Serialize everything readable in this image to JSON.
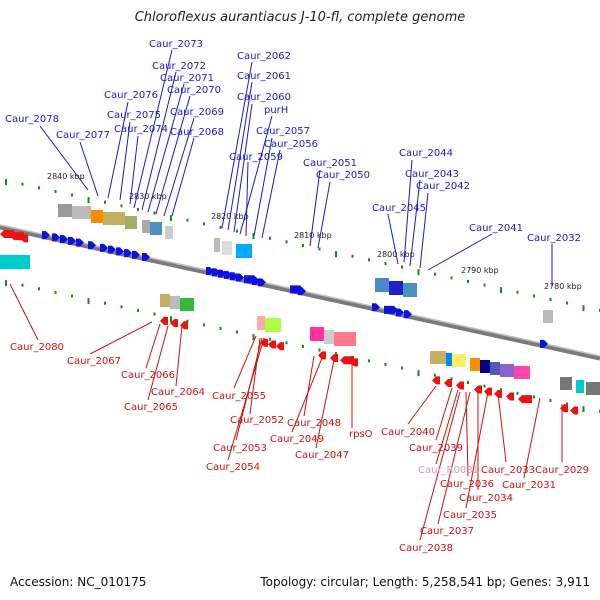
{
  "title": "Chloroflexus aurantiacus J-10-fl, complete genome",
  "footer": {
    "accession": "Accession: NC_010175",
    "stats": "Topology: circular; Length: 5,258,541 bp; Genes: 3,911"
  },
  "scale_labels": [
    "2840 kbp",
    "2830 kbp",
    "2820 kbp",
    "2810 kbp",
    "2800 kbp",
    "2790 kbp",
    "2780 kbp"
  ],
  "top_genes": [
    "Caur_2078",
    "Caur_2077",
    "Caur_2076",
    "Caur_2075",
    "Caur_2074",
    "Caur_2073",
    "Caur_2072",
    "Caur_2071",
    "Caur_2070",
    "Caur_2069",
    "Caur_2068",
    "Caur_2062",
    "Caur_2061",
    "Caur_2060",
    "purH",
    "Caur_2057",
    "Caur_2056",
    "Caur_2059",
    "Caur_2051",
    "Caur_2050",
    "Caur_2044",
    "Caur_2043",
    "Caur_2042",
    "Caur_2045",
    "Caur_2041",
    "Caur_2032"
  ],
  "bottom_genes": [
    "Caur_2080",
    "Caur_2067",
    "Caur_2066",
    "Caur_2064",
    "Caur_2065",
    "Caur_2055",
    "Caur_2052",
    "Caur_2053",
    "Caur_2054",
    "Caur_2048",
    "Caur_2049",
    "Caur_2047",
    "rpsO",
    "Caur_2040",
    "Caur_2039",
    "Caur_R0031",
    "Caur_2036",
    "Caur_2033",
    "Caur_2034",
    "Caur_2035",
    "Caur_2031",
    "Caur_2029",
    "Caur_2037",
    "Caur_2038"
  ],
  "colors": {
    "forward": "#1010e0",
    "reverse": "#ee1111",
    "backbone": "#7a7a7a",
    "tick": "#1a8a1a",
    "top_label": "#1a1acc",
    "bottom_label": "#cc1111",
    "rna_label": "#e090c8"
  }
}
